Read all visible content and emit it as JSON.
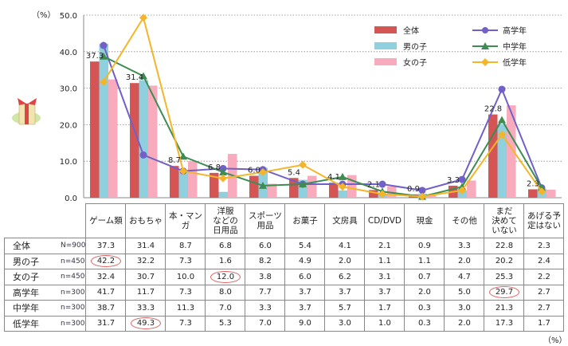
{
  "chart_data": {
    "type": "bar+line",
    "ylabel": "（%）",
    "ylim": [
      0,
      50
    ],
    "yticks": [
      "0.0",
      "10.0",
      "20.0",
      "30.0",
      "40.0",
      "50.0"
    ],
    "grid": true,
    "legend_position": "top-right",
    "categories": [
      "ゲーム類",
      "おもちゃ",
      "本・マンガ",
      "洋服などの日用品",
      "スポーツ用品",
      "お菓子",
      "文房具",
      "CD/DVD",
      "現金",
      "その他",
      "まだ決めていない",
      "あげる予定はない"
    ],
    "categories_display": [
      [
        "ゲーム類"
      ],
      [
        "おもちゃ"
      ],
      [
        "本・マンガ"
      ],
      [
        "洋服",
        "などの",
        "日用品"
      ],
      [
        "スポーツ",
        "用品"
      ],
      [
        "お菓子"
      ],
      [
        "文房具"
      ],
      [
        "CD/DVD"
      ],
      [
        "現金"
      ],
      [
        "その他"
      ],
      [
        "まだ",
        "決めて",
        "いない"
      ],
      [
        "あげる予",
        "定はない"
      ]
    ],
    "bar_series": [
      {
        "name": "全体",
        "n": "N=900",
        "color": "#d55454",
        "values": [
          37.3,
          31.4,
          8.7,
          6.8,
          6.0,
          5.4,
          4.1,
          2.1,
          0.9,
          3.3,
          22.8,
          2.3
        ]
      },
      {
        "name": "男の子",
        "n": "n=450",
        "color": "#8fd0df",
        "values": [
          42.2,
          32.2,
          7.3,
          1.6,
          8.2,
          4.9,
          2.0,
          1.1,
          1.1,
          2.0,
          20.2,
          2.4
        ]
      },
      {
        "name": "女の子",
        "n": "n=450",
        "color": "#f7abbc",
        "values": [
          32.4,
          30.7,
          10.0,
          12.0,
          3.8,
          6.0,
          6.2,
          3.1,
          0.7,
          4.7,
          25.3,
          2.2
        ]
      }
    ],
    "line_series": [
      {
        "name": "高学年",
        "n": "n=300",
        "color": "#7060c8",
        "marker": "circle",
        "values": [
          41.7,
          11.7,
          7.3,
          8.0,
          7.7,
          3.7,
          3.7,
          3.7,
          2.0,
          5.0,
          29.7,
          2.7
        ]
      },
      {
        "name": "中学年",
        "n": "n=300",
        "color": "#3e8c52",
        "marker": "triangle",
        "values": [
          38.7,
          33.3,
          11.3,
          7.0,
          3.3,
          3.7,
          5.7,
          1.7,
          0.3,
          3.0,
          21.3,
          2.7
        ]
      },
      {
        "name": "低学年",
        "n": "n=300",
        "color": "#f4b528",
        "marker": "diamond",
        "values": [
          31.7,
          49.3,
          7.3,
          5.3,
          7.0,
          9.0,
          3.0,
          1.0,
          0.3,
          2.0,
          17.3,
          1.7
        ]
      }
    ],
    "data_labels": [
      "37.3",
      "31.4",
      "8.7",
      "6.8",
      "6.0",
      "5.4",
      "4.1",
      "2.1",
      "0.9",
      "3.3",
      "22.8",
      "2.3"
    ],
    "highlighted_cells": [
      [
        "男の子",
        "ゲーム類"
      ],
      [
        "女の子",
        "洋服などの日用品"
      ],
      [
        "高学年",
        "まだ決めていない"
      ],
      [
        "低学年",
        "おもちゃ"
      ]
    ]
  },
  "table_unit": "（%）",
  "gift_icon": "gift-icon"
}
